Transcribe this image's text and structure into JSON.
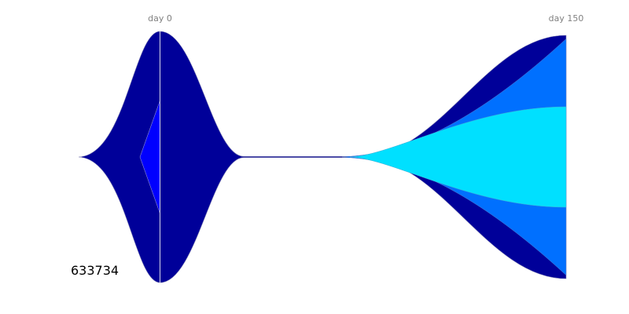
{
  "chart_data": {
    "type": "area",
    "sample_id": "633734",
    "time_points": [
      {
        "day": 0,
        "label": "day 0"
      },
      {
        "day": 150,
        "label": "day 150"
      }
    ],
    "series": [
      {
        "color": "#000099",
        "frequencies": {
          "day_0": 1.0,
          "day_150": 0.02
        }
      },
      {
        "color": "#0000ff",
        "parent": 0,
        "frequencies": {
          "day_0": 0.45,
          "day_150": 0.0
        }
      },
      {
        "color": "#0070ff",
        "parent": 0,
        "frequencies": {
          "day_0": 0.0,
          "day_150": 0.98
        }
      },
      {
        "color": "#00e0ff",
        "parent": 2,
        "frequencies": {
          "day_0": 0.0,
          "day_150": 0.4
        }
      }
    ],
    "grid": false,
    "legend": "none"
  }
}
